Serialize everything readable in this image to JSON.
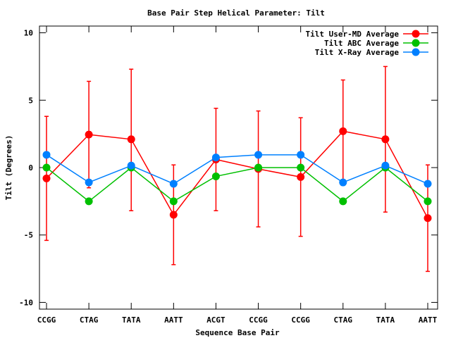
{
  "chart_data": {
    "type": "line",
    "title": "Base Pair Step Helical Parameter: Tilt",
    "xlabel": "Sequence Base Pair",
    "ylabel": "Tilt (Degrees)",
    "ylim": [
      -10.5,
      10.5
    ],
    "yticks": [
      -10,
      -5,
      0,
      5,
      10
    ],
    "categories": [
      "CCGG",
      "CTAG",
      "TATA",
      "AATT",
      "ACGT",
      "CCGG",
      "CCGG",
      "CTAG",
      "TATA",
      "AATT"
    ],
    "legend_position": "top-right",
    "series": [
      {
        "name": "Tilt User-MD Average",
        "color": "#ff0000",
        "values": [
          -0.8,
          2.45,
          2.1,
          -3.5,
          0.6,
          -0.1,
          -0.7,
          2.7,
          2.1,
          -3.75
        ],
        "error_low": [
          -5.4,
          -1.5,
          -3.2,
          -7.2,
          -3.2,
          -4.4,
          -5.1,
          -1.3,
          -3.3,
          -7.7
        ],
        "error_high": [
          3.8,
          6.4,
          7.3,
          0.2,
          4.4,
          4.2,
          3.7,
          6.5,
          7.5,
          0.2
        ]
      },
      {
        "name": "Tilt ABC Average",
        "color": "#00c000",
        "values": [
          0.0,
          -2.5,
          0.0,
          -2.5,
          -0.65,
          0.0,
          0.0,
          -2.5,
          0.0,
          -2.5
        ]
      },
      {
        "name": "Tilt X-Ray Average",
        "color": "#0080ff",
        "values": [
          0.95,
          -1.1,
          0.15,
          -1.2,
          0.75,
          0.95,
          0.95,
          -1.1,
          0.15,
          -1.2
        ]
      }
    ]
  }
}
